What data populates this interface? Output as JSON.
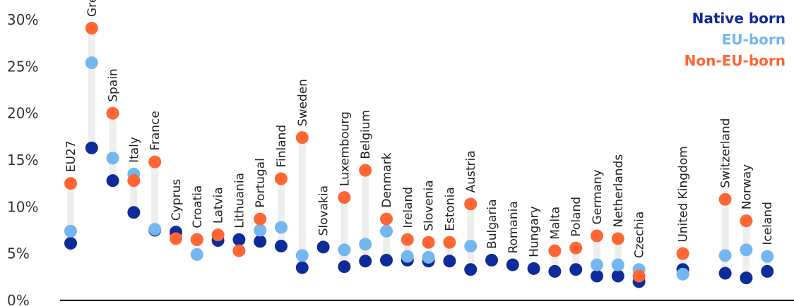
{
  "chart_data": {
    "type": "scatter",
    "title": "",
    "xlabel": "",
    "ylabel": "",
    "ylim": [
      0,
      30
    ],
    "yticks": [
      "0%",
      "5%",
      "10%",
      "15%",
      "20%",
      "25%",
      "30%"
    ],
    "grid": false,
    "legend_placement": "top-right",
    "categories": [
      "EU27",
      "Greece",
      "Spain",
      "Italy",
      "France",
      "Cyprus",
      "Croatia",
      "Latvia",
      "Lithuania",
      "Portugal",
      "Finland",
      "Sweden",
      "Slovakia",
      "Luxembourg",
      "Belgium",
      "Denmark",
      "Ireland",
      "Slovenia",
      "Estonia",
      "Austria",
      "Bulgaria",
      "Romania",
      "Hungary",
      "Malta",
      "Poland",
      "Germany",
      "Netherlands",
      "Czechia",
      "United Kingdom",
      "Switzerland",
      "Norway",
      "Iceland"
    ],
    "series": [
      {
        "name": "Native born",
        "color": "#0f2b9a",
        "values": [
          6.1,
          16.3,
          12.8,
          9.4,
          7.5,
          7.3,
          6.5,
          6.4,
          6.5,
          6.3,
          5.8,
          3.5,
          5.7,
          3.6,
          4.2,
          4.3,
          4.3,
          4.2,
          4.2,
          3.3,
          4.3,
          3.8,
          3.4,
          3.1,
          3.3,
          2.6,
          2.6,
          2.0,
          3.3,
          2.9,
          2.4,
          3.1
        ]
      },
      {
        "name": "EU-born",
        "color": "#74b6ef",
        "values": [
          7.4,
          25.4,
          15.2,
          13.5,
          7.6,
          null,
          4.9,
          null,
          null,
          7.5,
          7.8,
          4.8,
          null,
          5.4,
          6.0,
          7.4,
          4.7,
          4.6,
          null,
          5.8,
          null,
          null,
          null,
          null,
          null,
          3.8,
          3.8,
          3.3,
          2.8,
          4.8,
          5.4,
          4.7
        ]
      },
      {
        "name": "Non-EU-born",
        "color": "#ff6633",
        "values": [
          12.5,
          29.1,
          20.0,
          12.8,
          14.8,
          6.6,
          6.5,
          7.0,
          5.3,
          8.7,
          13.0,
          17.4,
          null,
          11.0,
          13.9,
          8.7,
          6.5,
          6.2,
          6.2,
          10.3,
          null,
          null,
          null,
          5.3,
          5.6,
          6.9,
          6.6,
          2.6,
          5.0,
          10.8,
          8.5,
          null
        ]
      }
    ]
  }
}
